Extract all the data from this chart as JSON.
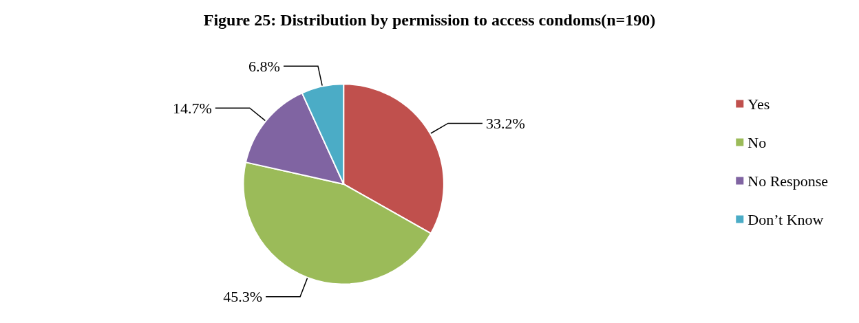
{
  "chart_data": {
    "type": "pie",
    "title": "Figure 25: Distribution by permission to access condoms(n=190)",
    "categories": [
      "Yes",
      "No",
      "No Response",
      "Don’t Know"
    ],
    "values": [
      33.2,
      45.3,
      14.7,
      6.8
    ],
    "value_labels": [
      "33.2%",
      "45.3%",
      "14.7%",
      "6.8%"
    ],
    "colors": [
      "#c0504d",
      "#9bbb59",
      "#8064a2",
      "#4bacc6"
    ],
    "legend": "right"
  }
}
